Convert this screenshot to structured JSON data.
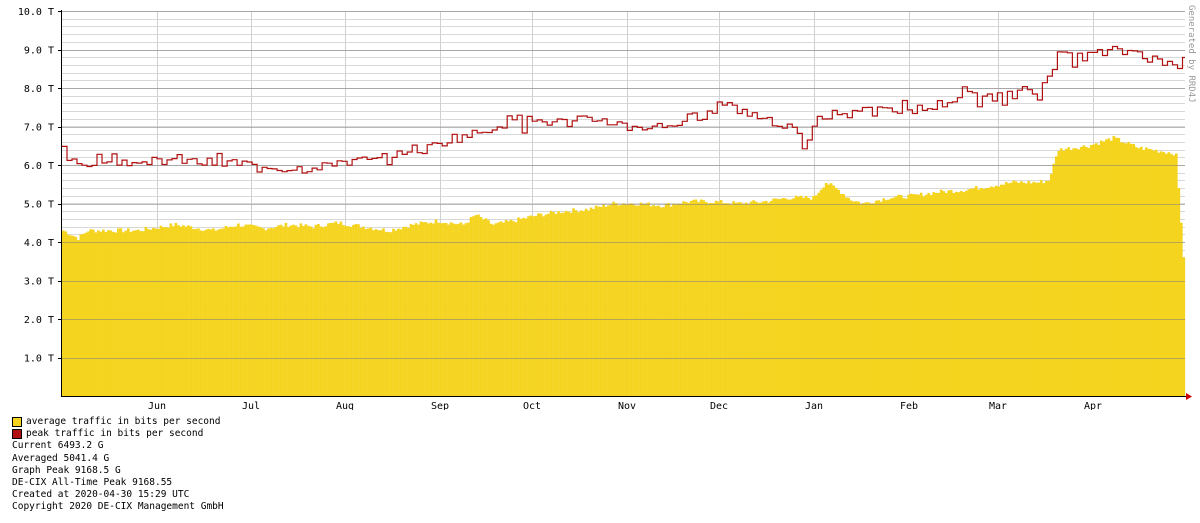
{
  "chart_data": {
    "type": "area",
    "watermark": "Generated by RRD4J",
    "y_tick_labels": [
      "1.0 T",
      "2.0 T",
      "3.0 T",
      "4.0 T",
      "5.0 T",
      "6.0 T",
      "7.0 T",
      "8.0 T",
      "9.0 T",
      "10.0 T"
    ],
    "ylim": [
      0,
      10
    ],
    "grid": true,
    "x_tick_labels": [
      "Jun",
      "Jul",
      "Aug",
      "Sep",
      "Oct",
      "Nov",
      "Dec",
      "Jan",
      "Feb",
      "Mar",
      "Apr"
    ],
    "series": [
      {
        "name": "average traffic in bits per second",
        "color": "#f5d41f",
        "anchors": [
          [
            0,
            4.3
          ],
          [
            6,
            4.1
          ],
          [
            10,
            4.3
          ],
          [
            30,
            4.3
          ],
          [
            45,
            4.45
          ],
          [
            60,
            4.3
          ],
          [
            70,
            4.45
          ],
          [
            80,
            4.35
          ],
          [
            90,
            4.45
          ],
          [
            100,
            4.4
          ],
          [
            110,
            4.5
          ],
          [
            120,
            4.4
          ],
          [
            130,
            4.3
          ],
          [
            140,
            4.45
          ],
          [
            150,
            4.55
          ],
          [
            160,
            4.45
          ],
          [
            165,
            4.7
          ],
          [
            172,
            4.45
          ],
          [
            180,
            4.55
          ],
          [
            190,
            4.7
          ],
          [
            200,
            4.8
          ],
          [
            210,
            4.85
          ],
          [
            220,
            5.0
          ],
          [
            230,
            5.0
          ],
          [
            240,
            4.95
          ],
          [
            250,
            5.05
          ],
          [
            260,
            5.05
          ],
          [
            270,
            5.0
          ],
          [
            280,
            5.05
          ],
          [
            290,
            5.15
          ],
          [
            300,
            5.15
          ],
          [
            305,
            5.55
          ],
          [
            310,
            5.35
          ],
          [
            315,
            5.1
          ],
          [
            320,
            5.0
          ],
          [
            330,
            5.15
          ],
          [
            340,
            5.2
          ],
          [
            350,
            5.3
          ],
          [
            360,
            5.35
          ],
          [
            370,
            5.45
          ],
          [
            380,
            5.55
          ],
          [
            390,
            5.55
          ],
          [
            394,
            5.6
          ],
          [
            398,
            6.4
          ],
          [
            410,
            6.5
          ],
          [
            420,
            6.7
          ],
          [
            430,
            6.45
          ],
          [
            440,
            6.35
          ],
          [
            445,
            6.3
          ],
          [
            448,
            3.6
          ]
        ],
        "noise": 0.06
      },
      {
        "name": "peak traffic in bits per second",
        "color": "#b01010",
        "anchors": [
          [
            0,
            6.35
          ],
          [
            5,
            5.95
          ],
          [
            15,
            6.2
          ],
          [
            30,
            6.05
          ],
          [
            45,
            6.15
          ],
          [
            55,
            6.05
          ],
          [
            70,
            6.05
          ],
          [
            80,
            5.95
          ],
          [
            95,
            5.9
          ],
          [
            110,
            6.1
          ],
          [
            125,
            6.1
          ],
          [
            135,
            6.4
          ],
          [
            145,
            6.4
          ],
          [
            155,
            6.7
          ],
          [
            165,
            6.8
          ],
          [
            170,
            6.95
          ],
          [
            180,
            7.2
          ],
          [
            190,
            7.15
          ],
          [
            200,
            7.1
          ],
          [
            215,
            7.2
          ],
          [
            225,
            7.0
          ],
          [
            240,
            7.0
          ],
          [
            250,
            7.2
          ],
          [
            260,
            7.35
          ],
          [
            265,
            7.75
          ],
          [
            270,
            7.4
          ],
          [
            280,
            7.25
          ],
          [
            290,
            7.0
          ],
          [
            297,
            6.45
          ],
          [
            302,
            7.2
          ],
          [
            310,
            7.35
          ],
          [
            320,
            7.5
          ],
          [
            330,
            7.45
          ],
          [
            345,
            7.45
          ],
          [
            360,
            7.8
          ],
          [
            370,
            7.8
          ],
          [
            380,
            7.8
          ],
          [
            385,
            8.15
          ],
          [
            390,
            7.85
          ],
          [
            394,
            8.3
          ],
          [
            398,
            8.8
          ],
          [
            410,
            8.85
          ],
          [
            420,
            8.95
          ],
          [
            430,
            8.95
          ],
          [
            440,
            8.6
          ],
          [
            448,
            8.85
          ]
        ],
        "noise": 0.14
      }
    ]
  },
  "legend": {
    "avg_label": "average traffic in bits per second",
    "peak_label": "peak traffic in bits per second"
  },
  "stats": {
    "current": "Current 6493.2 G",
    "averaged": "Averaged 5041.4 G",
    "graph_peak": "Graph Peak 9168.5 G",
    "all_time_peak": "DE-CIX All-Time Peak 9168.55",
    "created": "Created at 2020-04-30 15:29 UTC",
    "copyright": "Copyright 2020 DE-CIX Management GmbH"
  }
}
